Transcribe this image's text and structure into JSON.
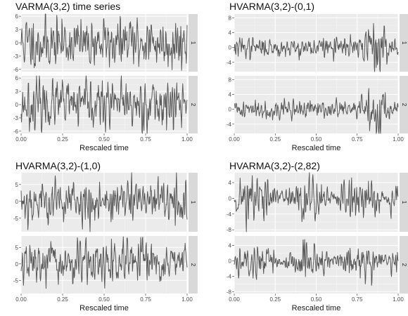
{
  "chart_data": [
    {
      "type": "line",
      "title": "VARMA(3,2) time series",
      "xlabel": "Rescaled time",
      "ylabel": "",
      "xlim": [
        0,
        1
      ],
      "x_ticks": [
        "0.00",
        "0.25",
        "0.50",
        "0.75",
        "1.00"
      ],
      "grid": true,
      "series": [
        {
          "name": "1",
          "ylim": [
            -6.5,
            6.5
          ],
          "y_ticks": [
            "-6",
            "-3",
            "0",
            "3",
            "6"
          ],
          "amplitude": 2.6,
          "seed": 11,
          "envelope": "flat"
        },
        {
          "name": "2",
          "ylim": [
            -6.5,
            6.5
          ],
          "y_ticks": [
            "-6",
            "-3",
            "0",
            "3",
            "6"
          ],
          "amplitude": 2.5,
          "seed": 23,
          "envelope": "flat"
        }
      ]
    },
    {
      "type": "line",
      "title": "HVARMA(3,2)-(0,1)",
      "xlabel": "Rescaled time",
      "ylabel": "",
      "xlim": [
        0,
        1
      ],
      "x_ticks": [
        "0.00",
        "0.25",
        "0.50",
        "0.75",
        "1.00"
      ],
      "grid": true,
      "series": [
        {
          "name": "1",
          "ylim": [
            -6.5,
            9
          ],
          "y_ticks": [
            "-4",
            "0",
            "4",
            "8"
          ],
          "amplitude": 1.6,
          "seed": 37,
          "envelope": "late-burst"
        },
        {
          "name": "2",
          "ylim": [
            -6.5,
            9
          ],
          "y_ticks": [
            "-4",
            "0",
            "4",
            "8"
          ],
          "amplitude": 1.5,
          "seed": 41,
          "envelope": "late-burst"
        }
      ]
    },
    {
      "type": "line",
      "title": "HVARMA(3,2)-(1,0)",
      "xlabel": "Rescaled time",
      "ylabel": "",
      "xlim": [
        0,
        1
      ],
      "x_ticks": [
        "0.00",
        "0.25",
        "0.50",
        "0.75",
        "1.00"
      ],
      "grid": true,
      "series": [
        {
          "name": "1",
          "ylim": [
            -9,
            8.5
          ],
          "y_ticks": [
            "-5",
            "0",
            "5"
          ],
          "amplitude": 3.0,
          "seed": 53,
          "envelope": "flat"
        },
        {
          "name": "2",
          "ylim": [
            -9,
            8.5
          ],
          "y_ticks": [
            "-5",
            "0",
            "5"
          ],
          "amplitude": 2.9,
          "seed": 67,
          "envelope": "flat"
        }
      ]
    },
    {
      "type": "line",
      "title": "HVARMA(3,2)-(2,82)",
      "xlabel": "Rescaled time",
      "ylabel": "",
      "xlim": [
        0,
        1
      ],
      "x_ticks": [
        "0.00",
        "0.25",
        "0.50",
        "0.75",
        "1.00"
      ],
      "grid": true,
      "series": [
        {
          "name": "1",
          "ylim": [
            -8.5,
            6.5
          ],
          "y_ticks": [
            "-8",
            "-4",
            "0",
            "4"
          ],
          "amplitude": 2.4,
          "seed": 71,
          "envelope": "periodic"
        },
        {
          "name": "2",
          "ylim": [
            -8.5,
            6.5
          ],
          "y_ticks": [
            "-8",
            "-4",
            "0",
            "4"
          ],
          "amplitude": 1.9,
          "seed": 89,
          "envelope": "periodic"
        }
      ]
    }
  ]
}
